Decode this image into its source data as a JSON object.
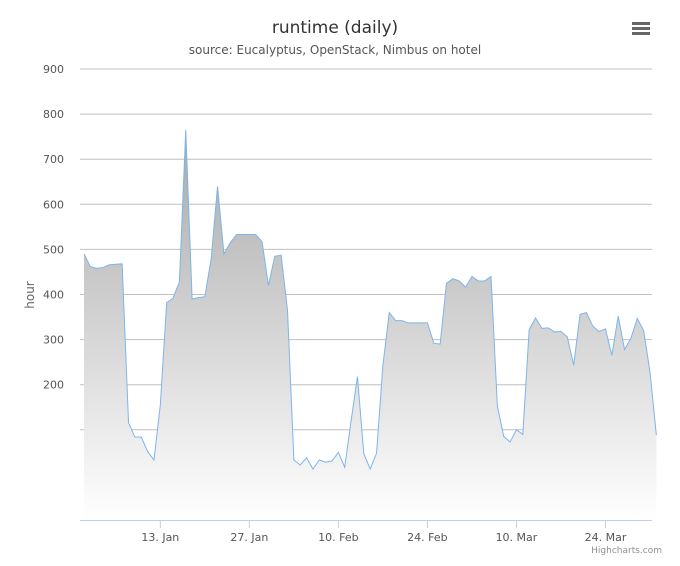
{
  "chart_data": {
    "type": "area",
    "title": "runtime (daily)",
    "subtitle": "source: Eucalyptus, OpenStack, Nimbus on hotel",
    "ylabel": "hour",
    "ylim": [
      -100,
      900
    ],
    "y_ticks": [
      {
        "value": 900,
        "label": "900"
      },
      {
        "value": 800,
        "label": "800"
      },
      {
        "value": 700,
        "label": "700"
      },
      {
        "value": 600,
        "label": "600"
      },
      {
        "value": 500,
        "label": "500"
      },
      {
        "value": 400,
        "label": "400"
      },
      {
        "value": 300,
        "label": "300"
      },
      {
        "value": 200,
        "label": "200"
      }
    ],
    "gridlines_at": [
      100,
      200,
      300,
      400,
      500,
      600,
      700,
      800,
      900
    ],
    "x_start": "2013-01-01",
    "x_end": "2013-03-31",
    "x_ticks": [
      {
        "date": "2013-01-13",
        "label": "13. Jan"
      },
      {
        "date": "2013-01-27",
        "label": "27. Jan"
      },
      {
        "date": "2013-02-10",
        "label": "10. Feb"
      },
      {
        "date": "2013-02-24",
        "label": "24. Feb"
      },
      {
        "date": "2013-03-10",
        "label": "10. Mar"
      },
      {
        "date": "2013-03-24",
        "label": "24. Mar"
      }
    ],
    "grid": true,
    "legend": "none",
    "series": [
      {
        "color": "#7cb5ec",
        "fill_top": "#a8a8a8",
        "fill_bottom": "#ffffff",
        "start": "2013-01-01",
        "values": [
          490,
          462,
          458,
          460,
          466,
          467,
          468,
          116,
          84,
          84,
          52,
          33,
          155,
          382,
          392,
          428,
          765,
          390,
          393,
          395,
          480,
          640,
          490,
          515,
          533,
          533,
          533,
          533,
          517,
          420,
          485,
          487,
          365,
          33,
          22,
          38,
          13,
          33,
          28,
          31,
          50,
          17,
          120,
          218,
          47,
          13,
          48,
          243,
          360,
          342,
          342,
          337,
          337,
          337,
          337,
          292,
          290,
          425,
          435,
          430,
          416,
          440,
          430,
          430,
          440,
          153,
          85,
          73,
          100,
          90,
          322,
          348,
          325,
          326,
          317,
          318,
          306,
          243,
          356,
          360,
          330,
          318,
          324,
          265,
          352,
          278,
          303,
          347,
          320,
          228,
          88
        ]
      }
    ]
  },
  "credits": "Highcharts.com",
  "menu_icon": "hamburger-menu-icon"
}
